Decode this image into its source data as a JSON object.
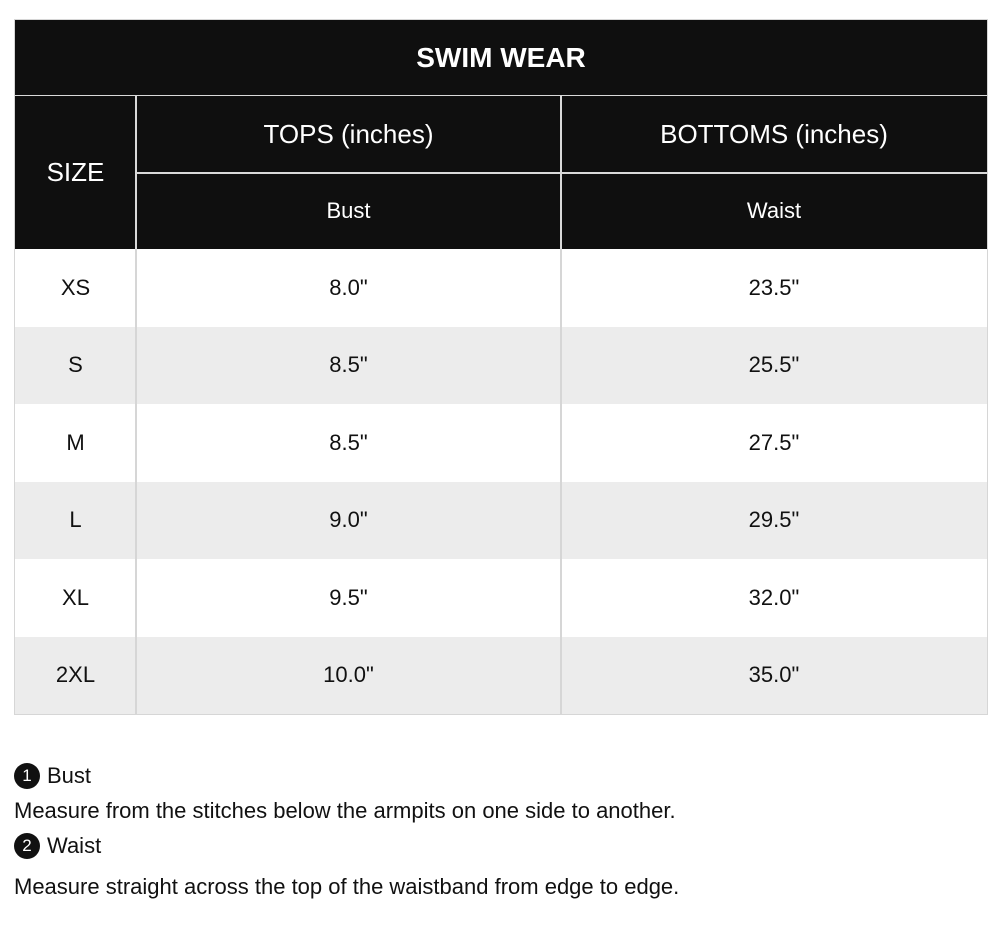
{
  "table": {
    "title": "SWIM WEAR",
    "headers": {
      "size": "SIZE",
      "tops": "TOPS (inches)",
      "bottoms": "BOTTOMS (inches)",
      "bust": "Bust",
      "waist": "Waist"
    },
    "rows": [
      {
        "size": "XS",
        "bust": "8.0\"",
        "waist": "23.5\""
      },
      {
        "size": "S",
        "bust": "8.5\"",
        "waist": "25.5\""
      },
      {
        "size": "M",
        "bust": "8.5\"",
        "waist": "27.5\""
      },
      {
        "size": "L",
        "bust": "9.0\"",
        "waist": "29.5\""
      },
      {
        "size": "XL",
        "bust": "9.5\"",
        "waist": "32.0\""
      },
      {
        "size": "2XL",
        "bust": "10.0\"",
        "waist": "35.0\""
      }
    ]
  },
  "notes": [
    {
      "number": "1",
      "title": "Bust",
      "text": "Measure from the stitches below the armpits on one side to another."
    },
    {
      "number": "2",
      "title": "Waist",
      "text": "Measure straight across the top of the waistband from edge to edge."
    }
  ],
  "colors": {
    "header_bg": "#0f0f0f",
    "header_text": "#ffffff",
    "alt_row_bg": "#ececec",
    "border": "#d6d6d6"
  }
}
